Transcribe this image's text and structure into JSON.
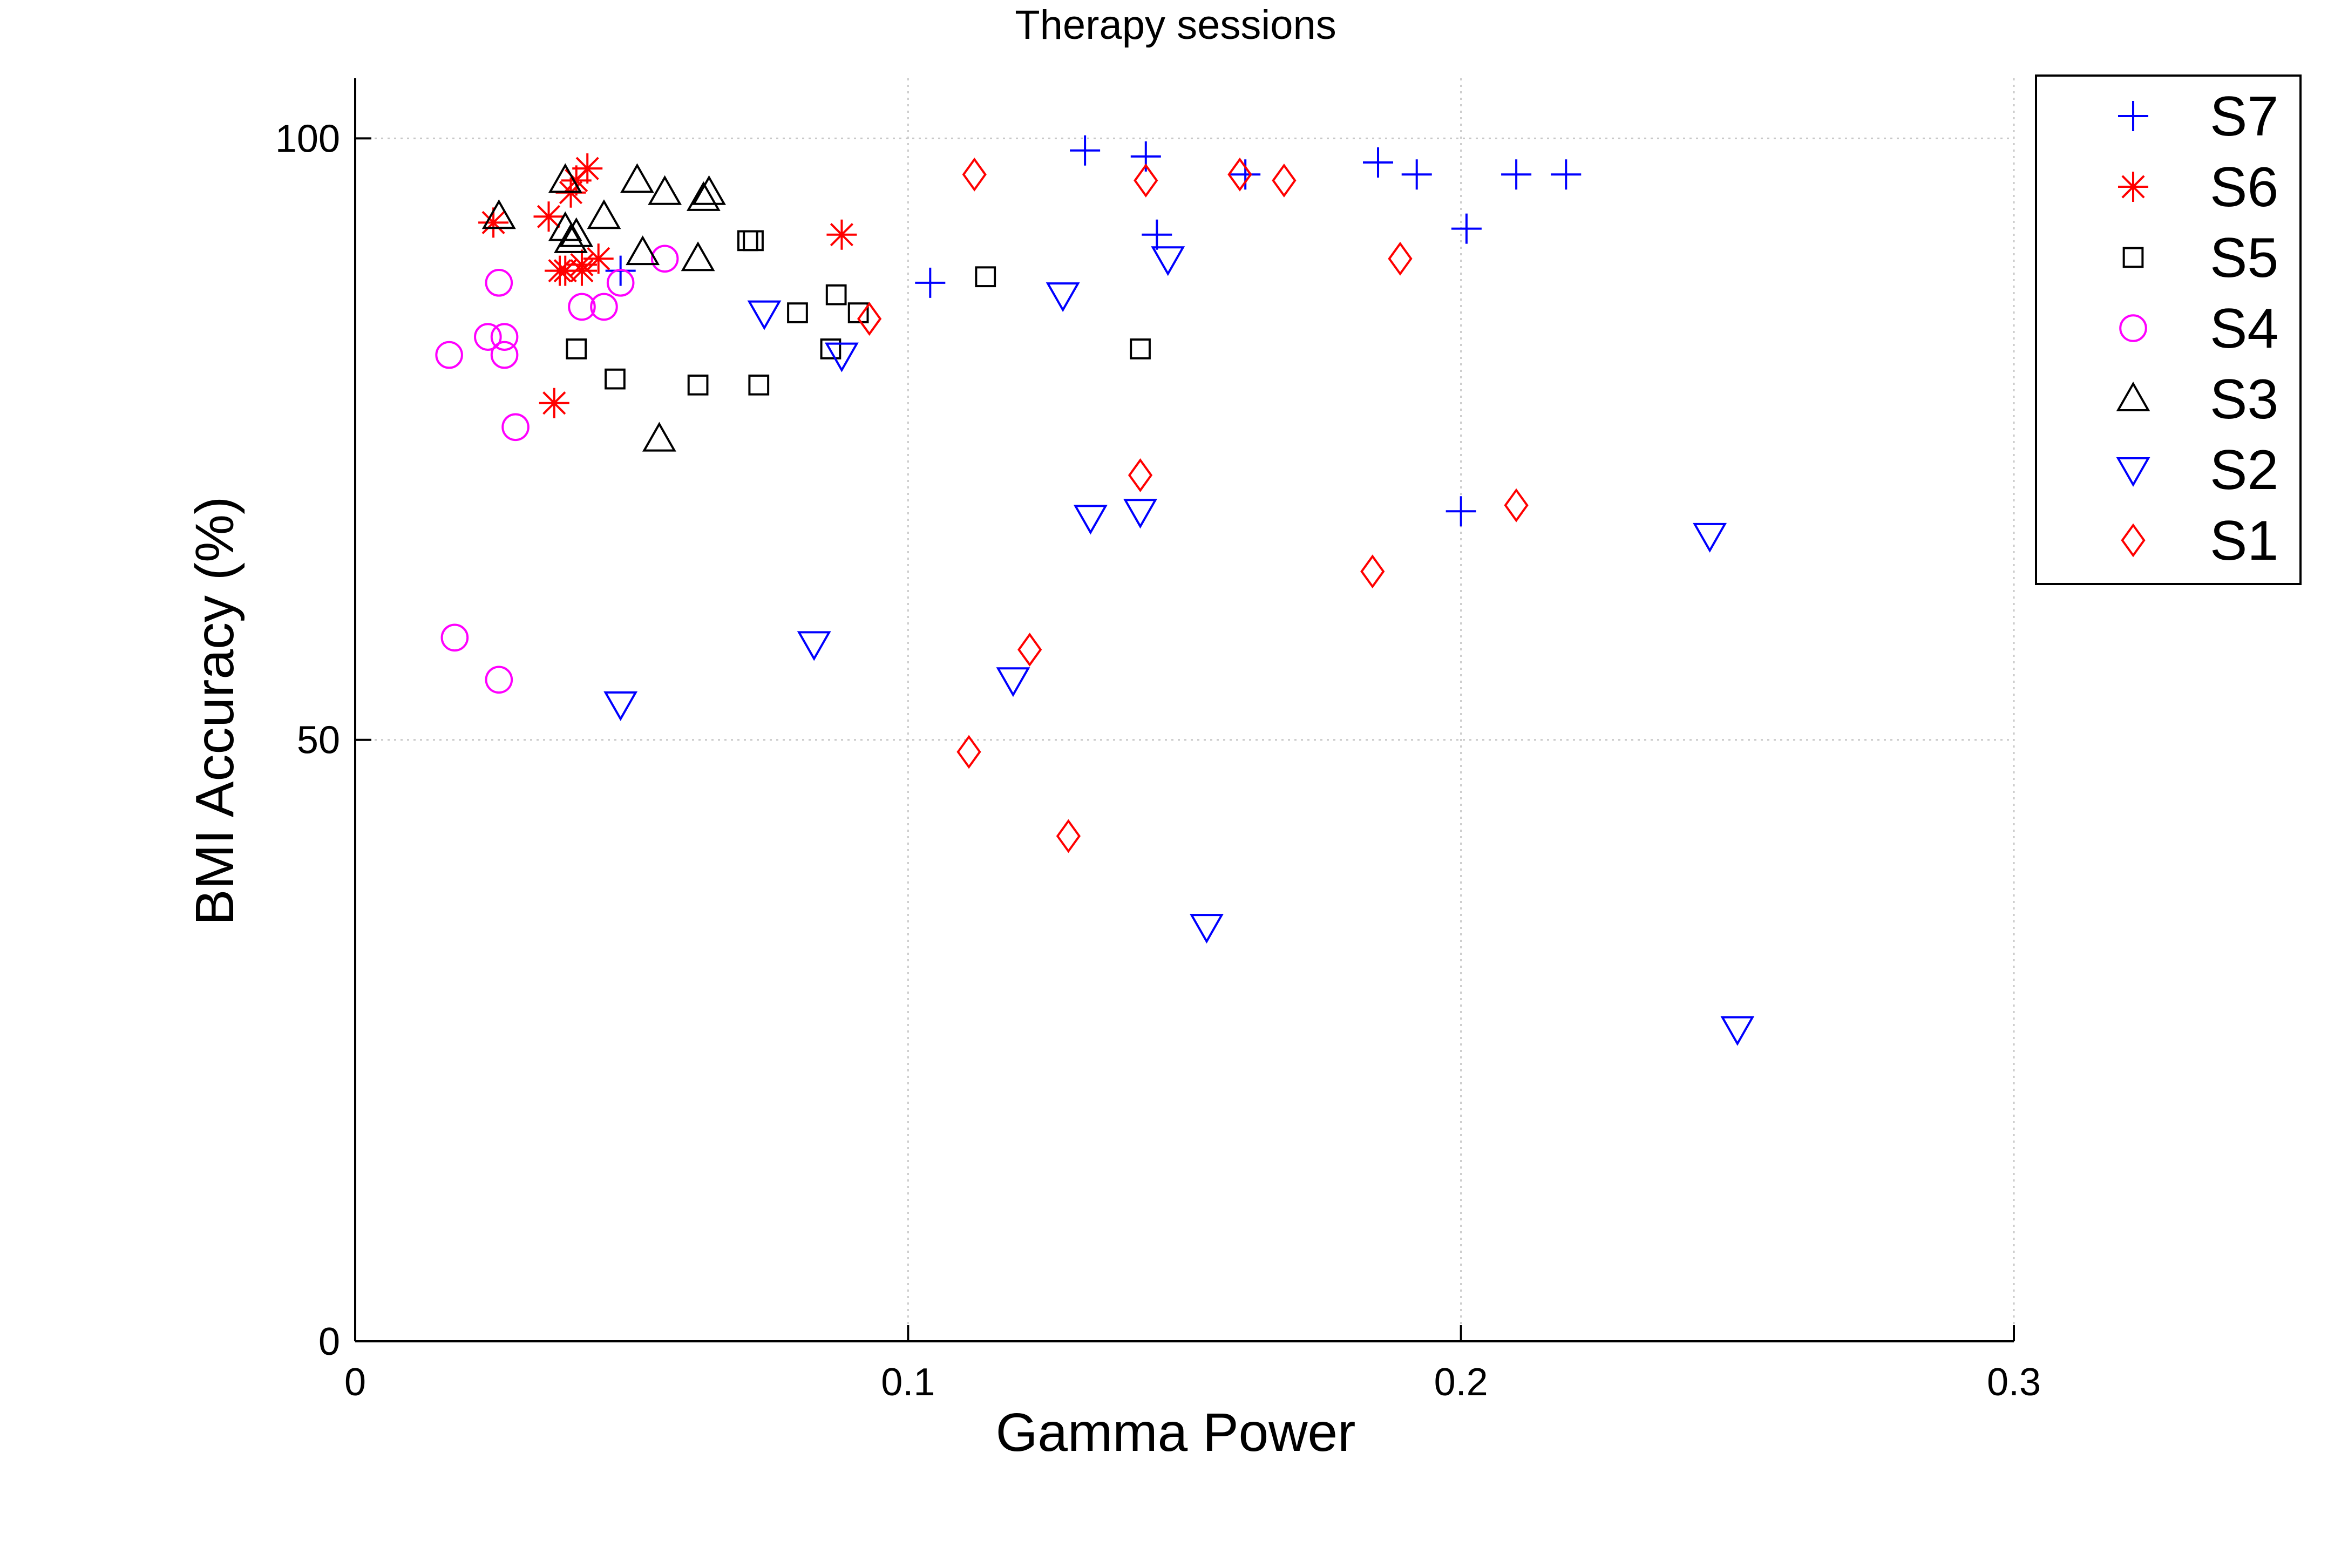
{
  "chart_data": {
    "type": "scatter",
    "title": "Therapy sessions",
    "xlabel": "Gamma Power",
    "ylabel": "BMI Accuracy (%)",
    "xlim": [
      0,
      0.3
    ],
    "ylim": [
      0,
      105
    ],
    "xticks": [
      0,
      0.1,
      0.2,
      0.3
    ],
    "xtick_labels": [
      "0",
      "0.1",
      "0.2",
      "0.3"
    ],
    "yticks": [
      0,
      50,
      100
    ],
    "ytick_labels": [
      "0",
      "50",
      "100"
    ],
    "grid": true,
    "legend_position": "outside-top-right",
    "series": [
      {
        "name": "S7",
        "marker": "plus",
        "color": "#0000ff",
        "x": [
          0.048,
          0.104,
          0.132,
          0.143,
          0.145,
          0.161,
          0.185,
          0.192,
          0.2,
          0.201,
          0.21,
          0.219
        ],
        "y": [
          89,
          88,
          99,
          98.5,
          92,
          97,
          98,
          97,
          69,
          92.5,
          97,
          97
        ]
      },
      {
        "name": "S6",
        "marker": "asterisk",
        "color": "#ff0000",
        "x": [
          0.025,
          0.035,
          0.036,
          0.037,
          0.038,
          0.039,
          0.04,
          0.041,
          0.041,
          0.042,
          0.044,
          0.088
        ],
        "y": [
          93,
          93.5,
          78,
          89,
          89,
          95.5,
          96.5,
          89,
          89.5,
          97.5,
          90,
          92
        ]
      },
      {
        "name": "S5",
        "marker": "square",
        "color": "#000000",
        "x": [
          0.04,
          0.047,
          0.062,
          0.071,
          0.072,
          0.073,
          0.08,
          0.086,
          0.087,
          0.091,
          0.114,
          0.142
        ],
        "y": [
          82.5,
          80,
          79.5,
          91.5,
          91.5,
          79.5,
          85.5,
          82.5,
          87,
          85.5,
          88.5,
          82.5
        ]
      },
      {
        "name": "S4",
        "marker": "circle",
        "color": "#ff00ff",
        "x": [
          0.017,
          0.018,
          0.024,
          0.026,
          0.026,
          0.027,
          0.027,
          0.029,
          0.041,
          0.045,
          0.048,
          0.056
        ],
        "y": [
          82,
          58.5,
          83.5,
          88,
          55,
          83.5,
          82,
          76,
          86,
          86,
          88,
          90
        ]
      },
      {
        "name": "S3",
        "marker": "triangle-up",
        "color": "#000000",
        "x": [
          0.026,
          0.038,
          0.038,
          0.039,
          0.04,
          0.045,
          0.051,
          0.052,
          0.055,
          0.056,
          0.062,
          0.063,
          0.064
        ],
        "y": [
          93.5,
          96.5,
          92.5,
          91.5,
          92,
          93.5,
          96.5,
          90.5,
          75,
          95.5,
          90,
          95,
          95.5
        ]
      },
      {
        "name": "S2",
        "marker": "triangle-down",
        "color": "#0000ff",
        "x": [
          0.048,
          0.074,
          0.083,
          0.088,
          0.119,
          0.128,
          0.133,
          0.142,
          0.147,
          0.154,
          0.245,
          0.25
        ],
        "y": [
          53,
          85.5,
          58,
          82,
          55,
          87,
          68.5,
          69,
          90,
          34.5,
          67,
          26
        ]
      },
      {
        "name": "S1",
        "marker": "diamond",
        "color": "#ff0000",
        "x": [
          0.093,
          0.111,
          0.112,
          0.122,
          0.129,
          0.142,
          0.143,
          0.16,
          0.168,
          0.184,
          0.189,
          0.21
        ],
        "y": [
          85,
          49,
          97,
          57.5,
          42,
          72,
          96.5,
          97,
          96.5,
          64,
          90,
          69.5
        ]
      }
    ],
    "legend_order": [
      "S7",
      "S6",
      "S5",
      "S4",
      "S3",
      "S2",
      "S1"
    ]
  }
}
